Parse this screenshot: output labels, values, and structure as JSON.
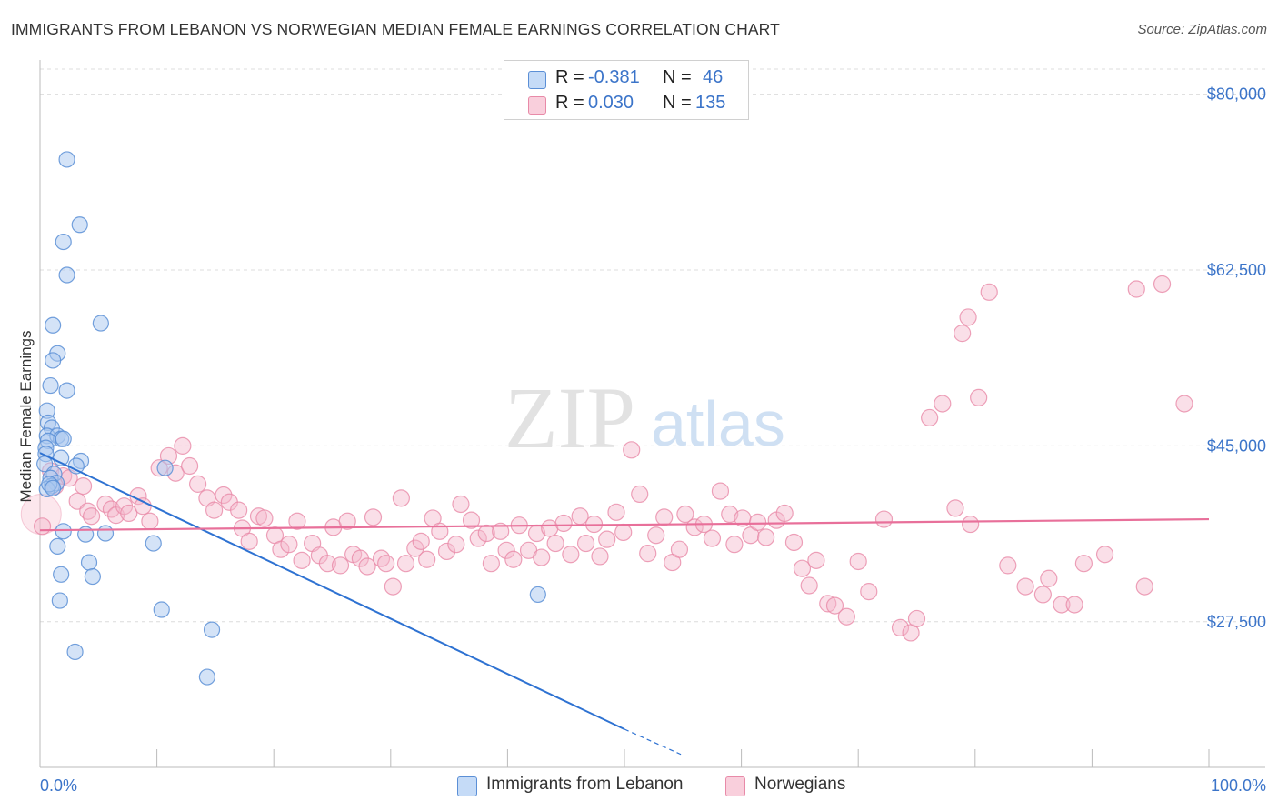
{
  "header": {
    "title": "IMMIGRANTS FROM LEBANON VS NORWEGIAN MEDIAN FEMALE EARNINGS CORRELATION CHART",
    "source": "Source: ZipAtlas.com"
  },
  "legend": {
    "series1": {
      "r_label": "R =",
      "r_value": "-0.381",
      "n_label": "N =",
      "n_value": "46"
    },
    "series2": {
      "r_label": "R =",
      "r_value": "0.030",
      "n_label": "N =",
      "n_value": "135"
    }
  },
  "bottom_legend": {
    "series1": "Immigrants from Lebanon",
    "series2": "Norwegians"
  },
  "colors": {
    "blue_fill": "#aac8f0",
    "blue_stroke": "#5b8fd6",
    "blue_line": "#2e72d2",
    "pink_fill": "#f5b9cc",
    "pink_stroke": "#e88aa8",
    "pink_line": "#e8709a",
    "axis_text": "#3b74c9"
  },
  "chart_data": {
    "type": "scatter",
    "title": "IMMIGRANTS FROM LEBANON VS NORWEGIAN MEDIAN FEMALE EARNINGS CORRELATION CHART",
    "xlabel": "",
    "ylabel": "Median Female Earnings",
    "xlim": [
      0,
      100
    ],
    "ylim": [
      13000,
      82500
    ],
    "x_tick_labels": [
      "0.0%",
      "100.0%"
    ],
    "y_ticks": [
      27500,
      45000,
      62500,
      80000
    ],
    "y_tick_labels": [
      "$27,500",
      "$45,000",
      "$62,500",
      "$80,000"
    ],
    "watermark": {
      "zip": "ZIP",
      "atlas": "atlas"
    },
    "series": [
      {
        "name": "Immigrants from Lebanon",
        "color": "#aac8f0",
        "points": [
          [
            2.3,
            73500
          ],
          [
            3.4,
            67000
          ],
          [
            2.0,
            65300
          ],
          [
            2.3,
            62000
          ],
          [
            5.2,
            57200
          ],
          [
            1.1,
            57000
          ],
          [
            1.5,
            54200
          ],
          [
            1.1,
            53500
          ],
          [
            0.9,
            51000
          ],
          [
            2.3,
            50500
          ],
          [
            0.6,
            48500
          ],
          [
            0.7,
            47300
          ],
          [
            1.0,
            46800
          ],
          [
            0.6,
            46000
          ],
          [
            1.5,
            46000
          ],
          [
            1.8,
            45700
          ],
          [
            2.0,
            45700
          ],
          [
            0.7,
            45500
          ],
          [
            0.5,
            44800
          ],
          [
            0.5,
            44200
          ],
          [
            1.8,
            43800
          ],
          [
            0.4,
            43200
          ],
          [
            3.5,
            43500
          ],
          [
            3.1,
            43000
          ],
          [
            1.2,
            42200
          ],
          [
            0.9,
            41800
          ],
          [
            1.4,
            41300
          ],
          [
            1.0,
            41000
          ],
          [
            0.6,
            40700
          ],
          [
            10.7,
            42800
          ],
          [
            2.0,
            36500
          ],
          [
            5.6,
            36300
          ],
          [
            1.5,
            35000
          ],
          [
            9.7,
            35300
          ],
          [
            4.2,
            33400
          ],
          [
            1.8,
            32200
          ],
          [
            4.5,
            32000
          ],
          [
            1.7,
            29600
          ],
          [
            10.4,
            28700
          ],
          [
            42.6,
            30200
          ],
          [
            14.7,
            26700
          ],
          [
            3.0,
            24500
          ],
          [
            14.3,
            22000
          ],
          [
            0.8,
            41200
          ],
          [
            1.1,
            40800
          ],
          [
            3.9,
            36200
          ]
        ]
      },
      {
        "name": "Norwegians",
        "color": "#f5b9cc",
        "points": [
          [
            0.2,
            37000
          ],
          [
            0.9,
            42500
          ],
          [
            1.3,
            41000
          ],
          [
            2.0,
            42000
          ],
          [
            2.5,
            41800
          ],
          [
            3.2,
            39500
          ],
          [
            3.7,
            41000
          ],
          [
            4.1,
            38500
          ],
          [
            4.4,
            38000
          ],
          [
            5.6,
            39200
          ],
          [
            6.1,
            38700
          ],
          [
            6.5,
            38100
          ],
          [
            7.2,
            39000
          ],
          [
            7.6,
            38300
          ],
          [
            8.4,
            40000
          ],
          [
            8.8,
            39000
          ],
          [
            9.4,
            37500
          ],
          [
            10.2,
            42800
          ],
          [
            11.0,
            44000
          ],
          [
            11.6,
            42300
          ],
          [
            12.2,
            45000
          ],
          [
            12.8,
            43000
          ],
          [
            13.5,
            41200
          ],
          [
            14.3,
            39800
          ],
          [
            14.9,
            38600
          ],
          [
            15.7,
            40100
          ],
          [
            16.2,
            39400
          ],
          [
            17.0,
            38600
          ],
          [
            17.3,
            36800
          ],
          [
            17.9,
            35500
          ],
          [
            18.7,
            38000
          ],
          [
            19.2,
            37800
          ],
          [
            20.1,
            36100
          ],
          [
            20.6,
            34700
          ],
          [
            21.3,
            35200
          ],
          [
            22.0,
            37500
          ],
          [
            22.4,
            33600
          ],
          [
            23.3,
            35300
          ],
          [
            23.9,
            34100
          ],
          [
            24.6,
            33300
          ],
          [
            25.1,
            36900
          ],
          [
            25.7,
            33100
          ],
          [
            26.3,
            37500
          ],
          [
            26.8,
            34200
          ],
          [
            27.4,
            33800
          ],
          [
            28.0,
            33000
          ],
          [
            28.5,
            37900
          ],
          [
            29.2,
            33800
          ],
          [
            29.6,
            33300
          ],
          [
            30.2,
            31000
          ],
          [
            30.9,
            39800
          ],
          [
            31.3,
            33300
          ],
          [
            32.1,
            34800
          ],
          [
            32.6,
            35500
          ],
          [
            33.1,
            33700
          ],
          [
            33.6,
            37800
          ],
          [
            34.2,
            36500
          ],
          [
            34.8,
            34500
          ],
          [
            35.6,
            35200
          ],
          [
            36.0,
            39200
          ],
          [
            36.9,
            37600
          ],
          [
            37.5,
            35800
          ],
          [
            38.2,
            36300
          ],
          [
            38.6,
            33300
          ],
          [
            39.4,
            36500
          ],
          [
            39.9,
            34600
          ],
          [
            40.5,
            33700
          ],
          [
            41.0,
            37100
          ],
          [
            41.8,
            34600
          ],
          [
            42.5,
            36300
          ],
          [
            42.9,
            33900
          ],
          [
            43.6,
            36800
          ],
          [
            44.1,
            35300
          ],
          [
            44.8,
            37300
          ],
          [
            45.4,
            34200
          ],
          [
            46.2,
            38000
          ],
          [
            46.7,
            35300
          ],
          [
            47.4,
            37200
          ],
          [
            47.9,
            34000
          ],
          [
            48.5,
            35700
          ],
          [
            49.3,
            38400
          ],
          [
            49.9,
            36400
          ],
          [
            50.6,
            44600
          ],
          [
            51.3,
            40200
          ],
          [
            52.0,
            34300
          ],
          [
            52.7,
            36100
          ],
          [
            53.4,
            37900
          ],
          [
            54.1,
            33400
          ],
          [
            54.7,
            34700
          ],
          [
            55.2,
            38200
          ],
          [
            56.0,
            36900
          ],
          [
            56.8,
            37200
          ],
          [
            57.5,
            35800
          ],
          [
            58.2,
            40500
          ],
          [
            59.0,
            38200
          ],
          [
            59.4,
            35200
          ],
          [
            60.1,
            37800
          ],
          [
            60.8,
            36100
          ],
          [
            61.4,
            37400
          ],
          [
            62.1,
            35900
          ],
          [
            63.0,
            37600
          ],
          [
            63.7,
            38300
          ],
          [
            64.5,
            35400
          ],
          [
            65.2,
            32800
          ],
          [
            65.8,
            31100
          ],
          [
            66.4,
            33600
          ],
          [
            67.4,
            29300
          ],
          [
            68.0,
            29100
          ],
          [
            69.0,
            28000
          ],
          [
            70.0,
            33500
          ],
          [
            70.9,
            30500
          ],
          [
            72.2,
            37700
          ],
          [
            73.6,
            26900
          ],
          [
            74.5,
            26400
          ],
          [
            75.0,
            27800
          ],
          [
            76.1,
            47800
          ],
          [
            77.2,
            49200
          ],
          [
            78.3,
            38800
          ],
          [
            78.9,
            56200
          ],
          [
            79.4,
            57800
          ],
          [
            79.6,
            37200
          ],
          [
            80.3,
            49800
          ],
          [
            81.2,
            60300
          ],
          [
            82.8,
            33100
          ],
          [
            84.3,
            31000
          ],
          [
            85.8,
            30200
          ],
          [
            86.3,
            31800
          ],
          [
            87.4,
            29200
          ],
          [
            88.5,
            29200
          ],
          [
            89.3,
            33300
          ],
          [
            91.1,
            34200
          ],
          [
            94.5,
            31000
          ],
          [
            93.8,
            60600
          ],
          [
            96.0,
            61100
          ],
          [
            97.9,
            49200
          ]
        ]
      }
    ],
    "trendlines": [
      {
        "series": "Immigrants from Lebanon",
        "x": [
          0,
          50
        ],
        "y": [
          44300,
          16800
        ],
        "dashed_to": [
          55,
          14200
        ]
      },
      {
        "series": "Norwegians",
        "x": [
          0,
          100
        ],
        "y": [
          36600,
          37700
        ]
      }
    ]
  }
}
